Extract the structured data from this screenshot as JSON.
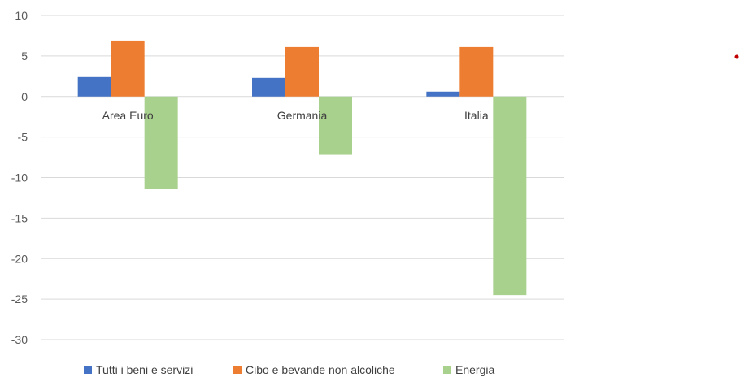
{
  "chart_data": {
    "type": "bar",
    "categories": [
      "Area Euro",
      "Germania",
      "Italia"
    ],
    "series": [
      {
        "name": "Tutti i beni e servizi",
        "color": "#4472C4",
        "values": [
          2.4,
          2.3,
          0.6
        ]
      },
      {
        "name": "Cibo e bevande non alcoliche",
        "color": "#ED7D31",
        "values": [
          6.9,
          6.1,
          6.1
        ]
      },
      {
        "name": "Energia",
        "color": "#A9D18E",
        "values": [
          -11.4,
          -7.2,
          -24.5
        ]
      }
    ],
    "ylim": [
      -30,
      10
    ],
    "yticks": [
      10,
      5,
      0,
      -5,
      -10,
      -15,
      -20,
      -25,
      -30
    ],
    "grid": true,
    "legend": "bottom"
  },
  "colors": {
    "grid": "#D9D9D9",
    "marker_dot": "#C00000"
  }
}
